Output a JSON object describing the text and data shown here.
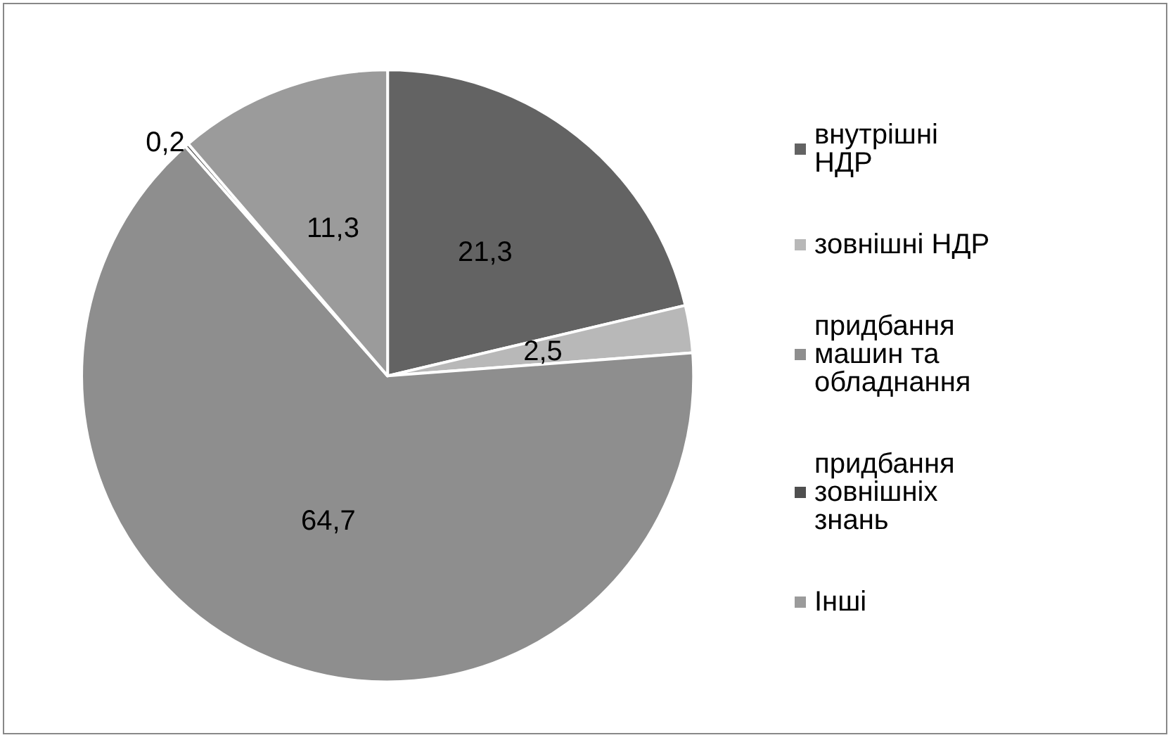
{
  "chart_data": {
    "type": "pie",
    "categories": [
      "внутрішні НДР",
      "зовнішні НДР",
      "придбання машин та обладнання",
      "придбання зовнішніх знань",
      "Інші"
    ],
    "values": [
      21.3,
      2.5,
      64.7,
      0.2,
      11.3
    ],
    "value_labels": [
      "21,3",
      "2,5",
      "64,7",
      "0,2",
      "11,3"
    ],
    "colors": [
      "#636363",
      "#b8b8b8",
      "#8e8e8e",
      "#4f4f4f",
      "#9b9b9b"
    ],
    "legend": "right"
  }
}
